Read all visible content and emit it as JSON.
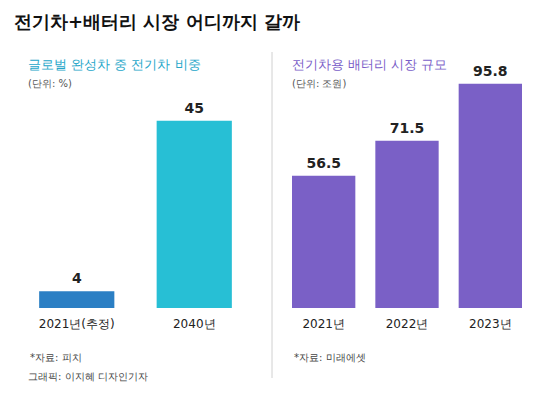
{
  "title": "전기차+배터리 시장 어디까지 갈까",
  "credit": "그래픽: 이지혜 디자인기자",
  "chart_data": [
    {
      "type": "bar",
      "title": "글로벌 완성차 중 전기차 비중",
      "unit": "(단위: %)",
      "categories": [
        "2021년(추정)",
        "2040년"
      ],
      "values": [
        4,
        45
      ],
      "colors": [
        "#2b7fc4",
        "#27bfd5"
      ],
      "ylim": [
        0,
        50
      ],
      "grid": false,
      "data_labels": true,
      "tick_labels": "x",
      "source": "*자료: 피치"
    },
    {
      "type": "bar",
      "title": "전기차용 배터리 시장 규모",
      "unit": "(단위: 조원)",
      "categories": [
        "2021년",
        "2022년",
        "2023년"
      ],
      "values": [
        56.5,
        71.5,
        95.8
      ],
      "color": "#7a60c6",
      "ylim": [
        0,
        100
      ],
      "grid": false,
      "data_labels": true,
      "tick_labels": "x",
      "source": "*자료: 미래에셋"
    }
  ]
}
